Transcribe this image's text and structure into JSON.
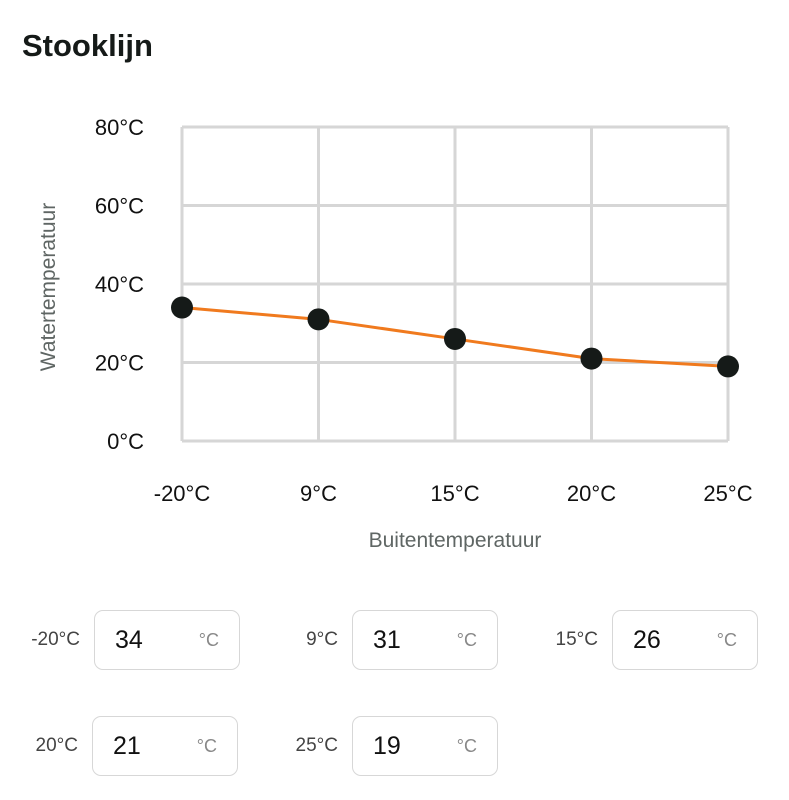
{
  "title": "Stooklijn",
  "chart_data": {
    "type": "line",
    "x": [
      "-20°C",
      "9°C",
      "15°C",
      "20°C",
      "25°C"
    ],
    "values": [
      34,
      31,
      26,
      21,
      19
    ],
    "ylim": [
      0,
      80
    ],
    "yticks": [
      "0°C",
      "20°C",
      "40°C",
      "60°C",
      "80°C"
    ],
    "ytick_values": [
      0,
      20,
      40,
      60,
      80
    ],
    "xlabel": "Buitentemperatuur",
    "ylabel": "Watertemperatuur",
    "grid": true,
    "line_color": "#f07a1e",
    "marker_color": "#151a18",
    "grid_color": "#d6d6d6"
  },
  "inputs": [
    {
      "label": "-20°C",
      "value": "34",
      "unit": "°C"
    },
    {
      "label": "9°C",
      "value": "31",
      "unit": "°C"
    },
    {
      "label": "15°C",
      "value": "26",
      "unit": "°C"
    },
    {
      "label": "20°C",
      "value": "21",
      "unit": "°C"
    },
    {
      "label": "25°C",
      "value": "19",
      "unit": "°C"
    }
  ]
}
